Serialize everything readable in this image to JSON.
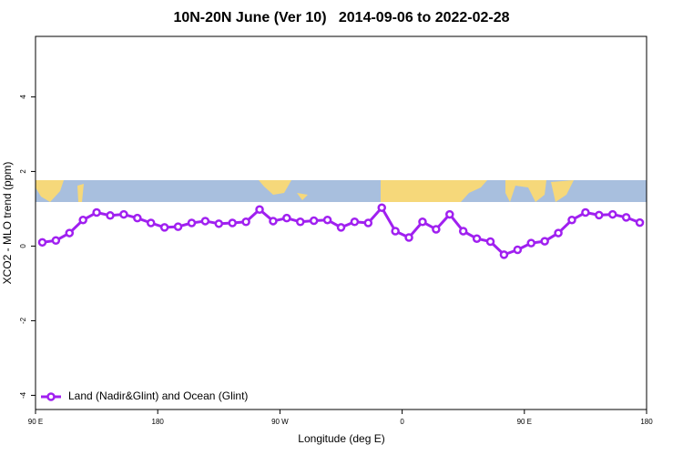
{
  "chart_data": {
    "type": "line",
    "title": "10N-20N June (Ver 10)   2014-09-06 to 2022-02-28",
    "xlabel": "Longitude (deg E)",
    "ylabel": "XCO2 - MLO trend (ppm)",
    "x": [
      95,
      105,
      115,
      125,
      135,
      145,
      155,
      165,
      175,
      185,
      195,
      205,
      215,
      225,
      235,
      245,
      255,
      265,
      275,
      285,
      295,
      305,
      315,
      325,
      335,
      345,
      355,
      365,
      375,
      385,
      395,
      405,
      415,
      425,
      435,
      445,
      455,
      465,
      475,
      485,
      495,
      505,
      515,
      525,
      535
    ],
    "series": [
      {
        "name": "Land (Nadir&Glint) and Ocean (Glint)",
        "color": "#a020f0",
        "values": [
          0.1,
          0.15,
          0.35,
          0.7,
          0.9,
          0.82,
          0.85,
          0.75,
          0.62,
          0.5,
          0.52,
          0.62,
          0.67,
          0.6,
          0.62,
          0.65,
          0.98,
          0.67,
          0.75,
          0.65,
          0.68,
          0.7,
          0.5,
          0.65,
          0.62,
          1.03,
          0.4,
          0.23,
          0.65,
          0.45,
          0.85,
          0.4,
          0.2,
          0.12,
          -0.23,
          -0.1,
          0.08,
          0.13,
          0.35,
          0.7,
          0.9,
          0.83,
          0.85,
          0.77,
          0.63
        ]
      }
    ],
    "xlim": [
      90,
      540
    ],
    "xticks": [
      {
        "value": 90,
        "label": "90 E"
      },
      180,
      {
        "value": 270,
        "label": "90 W"
      },
      {
        "value": 360,
        "label": "0"
      },
      {
        "value": 450,
        "label": "90 E"
      },
      {
        "value": 540,
        "label": "180"
      }
    ],
    "ylim": [
      -4.38,
      5.62
    ],
    "yticks": [
      -4,
      -2,
      0,
      2,
      4
    ],
    "legend": "bottom-left"
  }
}
